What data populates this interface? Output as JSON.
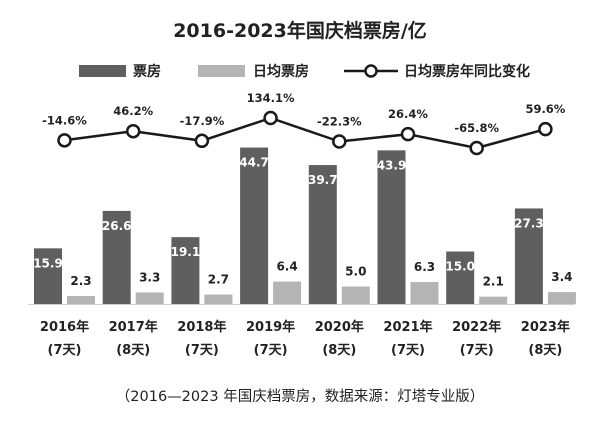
{
  "chart_data": {
    "type": "bar",
    "title": "2016-2023年国庆档票房/亿",
    "legend": {
      "position": "top",
      "entries": [
        "票房",
        "日均票房",
        "日均票房年同比变化"
      ]
    },
    "categories": [
      "2016年",
      "2017年",
      "2018年",
      "2019年",
      "2020年",
      "2021年",
      "2022年",
      "2023年"
    ],
    "days": [
      "(7天)",
      "(8天)",
      "(7天)",
      "(7天)",
      "(8天)",
      "(7天)",
      "(7天)",
      "(8天)"
    ],
    "series": [
      {
        "name": "票房",
        "type": "bar",
        "values": [
          15.9,
          26.6,
          19.1,
          44.7,
          39.7,
          43.9,
          15.0,
          27.3
        ],
        "labels": [
          "15.9",
          "26.6",
          "19.1",
          "44.7",
          "39.7",
          "43.9",
          "15.0",
          "27.3"
        ]
      },
      {
        "name": "日均票房",
        "type": "bar",
        "values": [
          2.3,
          3.3,
          2.7,
          6.4,
          5.0,
          6.3,
          2.1,
          3.4
        ],
        "labels": [
          "2.3",
          "3.3",
          "2.7",
          "6.4",
          "5.0",
          "6.3",
          "2.1",
          "3.4"
        ]
      },
      {
        "name": "日均票房年同比变化",
        "type": "line",
        "values": [
          -14.6,
          46.2,
          -17.9,
          134.1,
          -22.3,
          26.4,
          -65.8,
          59.6
        ],
        "labels": [
          "-14.6%",
          "46.2%",
          "-17.9%",
          "134.1%",
          "-22.3%",
          "26.4%",
          "-65.8%",
          "59.6%"
        ]
      }
    ],
    "grid": false,
    "caption": "（2016—2023 年国庆档票房，数据来源：灯塔专业版）"
  },
  "colors": {
    "box_office": "#5f5f5f",
    "daily": "#b4b4b4",
    "line": "#1a1a1a",
    "text": "#222222",
    "bar_label_dark": "#ffffff",
    "bar_label_light": "#222222"
  }
}
